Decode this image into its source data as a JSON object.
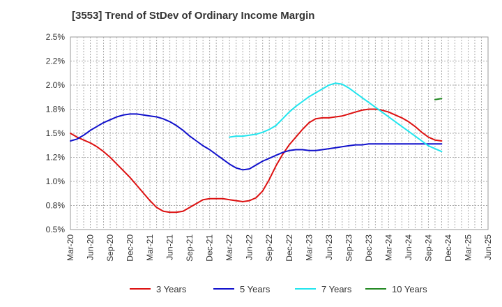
{
  "chart_data": {
    "type": "line",
    "title": "[3553]  Trend of StDev of Ordinary Income Margin",
    "xlabel": "",
    "ylabel": "",
    "x_ticks": [
      "Mar-20",
      "Jun-20",
      "Sep-20",
      "Dec-20",
      "Mar-21",
      "Jun-21",
      "Sep-21",
      "Dec-21",
      "Mar-22",
      "Jun-22",
      "Sep-22",
      "Dec-22",
      "Mar-23",
      "Jun-23",
      "Sep-23",
      "Dec-23",
      "Mar-24",
      "Jun-24",
      "Sep-24",
      "Dec-24",
      "Mar-25",
      "Jun-25"
    ],
    "y_ticks": [
      "0.5%",
      "0.8%",
      "1.0%",
      "1.2%",
      "1.5%",
      "1.8%",
      "2.0%",
      "2.2%",
      "2.5%"
    ],
    "ylim": [
      0.5,
      2.5
    ],
    "grid": true,
    "legend_position": "bottom",
    "series": [
      {
        "name": "3 Years",
        "color": "#dd1111",
        "points": [
          [
            "Mar-20",
            1.5
          ],
          [
            "Apr-20",
            1.46
          ],
          [
            "May-20",
            1.43
          ],
          [
            "Jun-20",
            1.4
          ],
          [
            "Jul-20",
            1.36
          ],
          [
            "Aug-20",
            1.31
          ],
          [
            "Sep-20",
            1.25
          ],
          [
            "Oct-20",
            1.18
          ],
          [
            "Nov-20",
            1.11
          ],
          [
            "Dec-20",
            1.04
          ],
          [
            "Jan-21",
            0.96
          ],
          [
            "Feb-21",
            0.88
          ],
          [
            "Mar-21",
            0.8
          ],
          [
            "Apr-21",
            0.73
          ],
          [
            "May-21",
            0.69
          ],
          [
            "Jun-21",
            0.68
          ],
          [
            "Jul-21",
            0.68
          ],
          [
            "Aug-21",
            0.69
          ],
          [
            "Sep-21",
            0.73
          ],
          [
            "Oct-21",
            0.77
          ],
          [
            "Nov-21",
            0.81
          ],
          [
            "Dec-21",
            0.82
          ],
          [
            "Jan-22",
            0.82
          ],
          [
            "Feb-22",
            0.82
          ],
          [
            "Mar-22",
            0.81
          ],
          [
            "Apr-22",
            0.8
          ],
          [
            "May-22",
            0.79
          ],
          [
            "Jun-22",
            0.8
          ],
          [
            "Jul-22",
            0.83
          ],
          [
            "Aug-22",
            0.9
          ],
          [
            "Sep-22",
            1.02
          ],
          [
            "Oct-22",
            1.16
          ],
          [
            "Nov-22",
            1.28
          ],
          [
            "Dec-22",
            1.38
          ],
          [
            "Jan-23",
            1.46
          ],
          [
            "Feb-23",
            1.54
          ],
          [
            "Mar-23",
            1.61
          ],
          [
            "Apr-23",
            1.65
          ],
          [
            "May-23",
            1.66
          ],
          [
            "Jun-23",
            1.66
          ],
          [
            "Jul-23",
            1.67
          ],
          [
            "Aug-23",
            1.68
          ],
          [
            "Sep-23",
            1.7
          ],
          [
            "Oct-23",
            1.72
          ],
          [
            "Nov-23",
            1.74
          ],
          [
            "Dec-23",
            1.75
          ],
          [
            "Jan-24",
            1.75
          ],
          [
            "Feb-24",
            1.74
          ],
          [
            "Mar-24",
            1.72
          ],
          [
            "Apr-24",
            1.69
          ],
          [
            "May-24",
            1.66
          ],
          [
            "Jun-24",
            1.62
          ],
          [
            "Jul-24",
            1.57
          ],
          [
            "Aug-24",
            1.51
          ],
          [
            "Sep-24",
            1.46
          ],
          [
            "Oct-24",
            1.43
          ],
          [
            "Nov-24",
            1.42
          ]
        ]
      },
      {
        "name": "5 Years",
        "color": "#1111cc",
        "points": [
          [
            "Mar-20",
            1.42
          ],
          [
            "Apr-20",
            1.44
          ],
          [
            "May-20",
            1.48
          ],
          [
            "Jun-20",
            1.53
          ],
          [
            "Jul-20",
            1.57
          ],
          [
            "Aug-20",
            1.61
          ],
          [
            "Sep-20",
            1.64
          ],
          [
            "Oct-20",
            1.67
          ],
          [
            "Nov-20",
            1.69
          ],
          [
            "Dec-20",
            1.7
          ],
          [
            "Jan-21",
            1.7
          ],
          [
            "Feb-21",
            1.69
          ],
          [
            "Mar-21",
            1.68
          ],
          [
            "Apr-21",
            1.67
          ],
          [
            "May-21",
            1.65
          ],
          [
            "Jun-21",
            1.62
          ],
          [
            "Jul-21",
            1.58
          ],
          [
            "Aug-21",
            1.53
          ],
          [
            "Sep-21",
            1.47
          ],
          [
            "Oct-21",
            1.42
          ],
          [
            "Nov-21",
            1.37
          ],
          [
            "Dec-21",
            1.33
          ],
          [
            "Jan-22",
            1.28
          ],
          [
            "Feb-22",
            1.23
          ],
          [
            "Mar-22",
            1.18
          ],
          [
            "Apr-22",
            1.14
          ],
          [
            "May-22",
            1.12
          ],
          [
            "Jun-22",
            1.13
          ],
          [
            "Jul-22",
            1.17
          ],
          [
            "Aug-22",
            1.21
          ],
          [
            "Sep-22",
            1.24
          ],
          [
            "Oct-22",
            1.27
          ],
          [
            "Nov-22",
            1.3
          ],
          [
            "Dec-22",
            1.32
          ],
          [
            "Jan-23",
            1.33
          ],
          [
            "Feb-23",
            1.33
          ],
          [
            "Mar-23",
            1.32
          ],
          [
            "Apr-23",
            1.32
          ],
          [
            "May-23",
            1.33
          ],
          [
            "Jun-23",
            1.34
          ],
          [
            "Jul-23",
            1.35
          ],
          [
            "Aug-23",
            1.36
          ],
          [
            "Sep-23",
            1.37
          ],
          [
            "Oct-23",
            1.38
          ],
          [
            "Nov-23",
            1.38
          ],
          [
            "Dec-23",
            1.39
          ],
          [
            "Jan-24",
            1.39
          ],
          [
            "Feb-24",
            1.39
          ],
          [
            "Mar-24",
            1.39
          ],
          [
            "Apr-24",
            1.39
          ],
          [
            "May-24",
            1.39
          ],
          [
            "Jun-24",
            1.39
          ],
          [
            "Jul-24",
            1.39
          ],
          [
            "Aug-24",
            1.39
          ],
          [
            "Sep-24",
            1.39
          ],
          [
            "Oct-24",
            1.39
          ],
          [
            "Nov-24",
            1.39
          ]
        ]
      },
      {
        "name": "7 Years",
        "color": "#22e5ee",
        "points": [
          [
            "Mar-22",
            1.46
          ],
          [
            "Apr-22",
            1.47
          ],
          [
            "May-22",
            1.47
          ],
          [
            "Jun-22",
            1.48
          ],
          [
            "Jul-22",
            1.49
          ],
          [
            "Aug-22",
            1.51
          ],
          [
            "Sep-22",
            1.54
          ],
          [
            "Oct-22",
            1.58
          ],
          [
            "Nov-22",
            1.65
          ],
          [
            "Dec-22",
            1.72
          ],
          [
            "Jan-23",
            1.78
          ],
          [
            "Feb-23",
            1.83
          ],
          [
            "Mar-23",
            1.88
          ],
          [
            "Apr-23",
            1.92
          ],
          [
            "May-23",
            1.96
          ],
          [
            "Jun-23",
            2.0
          ],
          [
            "Jul-23",
            2.02
          ],
          [
            "Aug-23",
            2.01
          ],
          [
            "Sep-23",
            1.97
          ],
          [
            "Oct-23",
            1.92
          ],
          [
            "Nov-23",
            1.87
          ],
          [
            "Dec-23",
            1.82
          ],
          [
            "Jan-24",
            1.77
          ],
          [
            "Feb-24",
            1.72
          ],
          [
            "Mar-24",
            1.67
          ],
          [
            "Apr-24",
            1.62
          ],
          [
            "May-24",
            1.57
          ],
          [
            "Jun-24",
            1.52
          ],
          [
            "Jul-24",
            1.47
          ],
          [
            "Aug-24",
            1.42
          ],
          [
            "Sep-24",
            1.37
          ],
          [
            "Oct-24",
            1.34
          ],
          [
            "Nov-24",
            1.31
          ]
        ]
      },
      {
        "name": "10 Years",
        "color": "#228822",
        "points": [
          [
            "Oct-24",
            1.85
          ],
          [
            "Nov-24",
            1.86
          ]
        ]
      }
    ]
  }
}
